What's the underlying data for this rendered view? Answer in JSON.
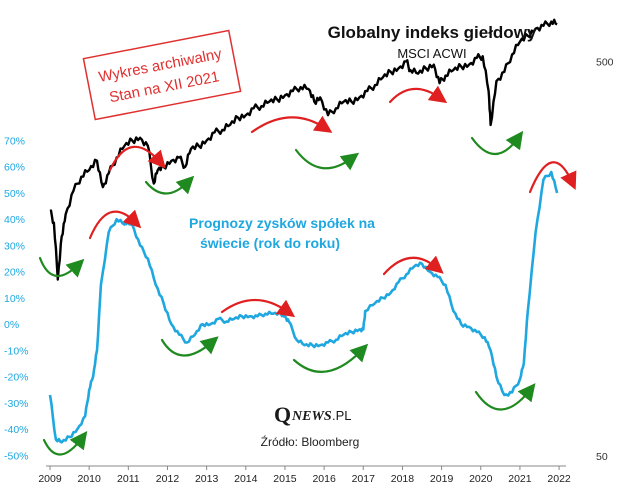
{
  "chart_data": {
    "type": "line",
    "title": "Globalny indeks giełdowy",
    "subtitle": "MSCI ACWI",
    "series_label_blue": [
      "Prognozy zysków spółek na",
      "świecie (rok do roku)"
    ],
    "stamp": [
      "Wykres archiwalny",
      "Stan na XII 2021"
    ],
    "source": "Źródło: Bloomberg",
    "logo": {
      "q": "Q",
      "news": "NEWS",
      "pl": ".PL"
    },
    "x_ticks": [
      "2009",
      "2010",
      "2011",
      "2012",
      "2013",
      "2014",
      "2015",
      "2016",
      "2017",
      "2018",
      "2019",
      "2020",
      "2021",
      "2022"
    ],
    "xlim": [
      2009,
      2022.1
    ],
    "left_axis": {
      "ticks": [
        "70%",
        "60%",
        "50%",
        "40%",
        "30%",
        "20%",
        "10%",
        "0%",
        "-10%",
        "-20%",
        "-30%",
        "-40%",
        "-50%"
      ],
      "values": [
        70,
        60,
        50,
        40,
        30,
        20,
        10,
        0,
        -10,
        -20,
        -30,
        -40,
        -50
      ],
      "ylim": [
        -51,
        74
      ]
    },
    "right_axis": {
      "ticks": [
        "500",
        "50"
      ],
      "values": [
        500,
        50
      ],
      "scale": "log",
      "ylim": [
        50,
        600
      ]
    },
    "colors": {
      "index": "#000000",
      "earnings": "#1fa7e0",
      "up_arrow": "#1f8a1f",
      "down_arrow": "#e02020",
      "stamp": "#e03030"
    },
    "series": [
      {
        "name": "Globalny indeks giełdowy",
        "axis": "right",
        "x": [
          2009.0,
          2009.1,
          2009.2,
          2009.3,
          2009.4,
          2009.6,
          2009.8,
          2010.0,
          2010.2,
          2010.35,
          2010.5,
          2010.7,
          2010.9,
          2011.1,
          2011.3,
          2011.5,
          2011.65,
          2011.75,
          2011.9,
          2012.1,
          2012.3,
          2012.45,
          2012.6,
          2012.8,
          2013.0,
          2013.2,
          2013.4,
          2013.6,
          2013.8,
          2014.0,
          2014.2,
          2014.4,
          2014.6,
          2014.8,
          2015.0,
          2015.2,
          2015.4,
          2015.6,
          2015.75,
          2015.9,
          2016.1,
          2016.3,
          2016.5,
          2016.7,
          2016.9,
          2017.1,
          2017.3,
          2017.5,
          2017.7,
          2017.9,
          2018.1,
          2018.2,
          2018.4,
          2018.6,
          2018.8,
          2018.95,
          2019.1,
          2019.3,
          2019.5,
          2019.7,
          2019.9,
          2020.05,
          2020.2,
          2020.25,
          2020.4,
          2020.6,
          2020.8,
          2021.0,
          2021.2,
          2021.4,
          2021.6,
          2021.8,
          2021.95
        ],
        "values": [
          209,
          195,
          140,
          180,
          205,
          235,
          255,
          265,
          280,
          240,
          260,
          285,
          305,
          315,
          320,
          305,
          245,
          265,
          270,
          280,
          285,
          270,
          300,
          305,
          315,
          330,
          335,
          345,
          360,
          365,
          380,
          385,
          395,
          400,
          410,
          420,
          430,
          425,
          395,
          405,
          365,
          380,
          395,
          395,
          405,
          420,
          435,
          455,
          470,
          480,
          500,
          475,
          465,
          480,
          490,
          440,
          460,
          475,
          485,
          490,
          510,
          515,
          420,
          345,
          445,
          470,
          520,
          560,
          580,
          605,
          615,
          630,
          620
        ]
      },
      {
        "name": "Prognozy zysków spółek na świecie (rok do roku)",
        "axis": "left",
        "x": [
          2009.0,
          2009.15,
          2009.3,
          2009.5,
          2009.7,
          2009.9,
          2010.0,
          2010.1,
          2010.2,
          2010.3,
          2010.5,
          2010.7,
          2010.9,
          2011.0,
          2011.1,
          2011.3,
          2011.5,
          2011.7,
          2011.9,
          2012.1,
          2012.3,
          2012.5,
          2012.7,
          2012.9,
          2013.1,
          2013.3,
          2013.5,
          2013.7,
          2013.9,
          2014.1,
          2014.3,
          2014.5,
          2014.7,
          2014.9,
          2015.0,
          2015.1,
          2015.3,
          2015.5,
          2015.7,
          2015.9,
          2016.1,
          2016.3,
          2016.5,
          2016.7,
          2016.9,
          2017.0,
          2017.05,
          2017.3,
          2017.5,
          2017.7,
          2017.9,
          2018.1,
          2018.3,
          2018.5,
          2018.7,
          2018.9,
          2019.1,
          2019.3,
          2019.5,
          2019.7,
          2019.9,
          2020.1,
          2020.25,
          2020.4,
          2020.6,
          2020.8,
          2021.0,
          2021.1,
          2021.2,
          2021.4,
          2021.6,
          2021.8,
          2021.95
        ],
        "values": [
          -27,
          -44,
          -45,
          -43,
          -40,
          -35,
          -25,
          -20,
          -10,
          15,
          35,
          40,
          38,
          39,
          38,
          30,
          25,
          15,
          8,
          0,
          -4,
          -7,
          -4,
          0,
          0,
          2,
          1,
          2,
          3,
          3,
          3,
          4,
          4,
          4,
          3,
          1,
          -6,
          -8,
          -8,
          -8,
          -7,
          -6,
          -4,
          -3,
          -2,
          -2,
          5,
          8,
          10,
          12,
          16,
          19,
          22,
          23,
          20,
          18,
          15,
          5,
          0,
          -1,
          -3,
          -5,
          -10,
          -20,
          -27,
          -26,
          -21,
          -15,
          5,
          35,
          55,
          58,
          50
        ]
      }
    ]
  }
}
